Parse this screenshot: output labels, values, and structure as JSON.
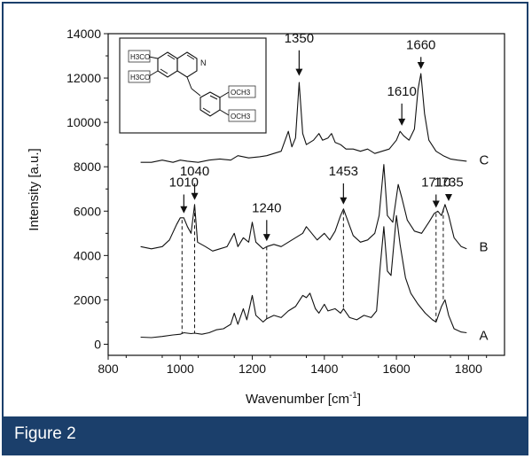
{
  "caption": {
    "text": "Figure 2"
  },
  "chart_data": {
    "type": "line",
    "title": "",
    "xlabel": "Wavenumber [cm",
    "xlabel_superscript": "-1",
    "xlabel_close": "]",
    "ylabel": "Intensity [a.u.]",
    "xlim": [
      800,
      1900
    ],
    "ylim": [
      -500,
      14000
    ],
    "xticks": [
      800,
      1000,
      1200,
      1400,
      1600,
      1800
    ],
    "yticks": [
      0,
      2000,
      4000,
      6000,
      8000,
      10000,
      12000,
      14000
    ],
    "grid": false,
    "series": [
      {
        "name": "A",
        "points": [
          [
            890,
            320
          ],
          [
            920,
            300
          ],
          [
            950,
            350
          ],
          [
            980,
            420
          ],
          [
            1000,
            450
          ],
          [
            1010,
            520
          ],
          [
            1030,
            480
          ],
          [
            1040,
            500
          ],
          [
            1060,
            450
          ],
          [
            1080,
            520
          ],
          [
            1100,
            650
          ],
          [
            1120,
            700
          ],
          [
            1140,
            900
          ],
          [
            1150,
            1400
          ],
          [
            1160,
            900
          ],
          [
            1175,
            1600
          ],
          [
            1185,
            1100
          ],
          [
            1200,
            2200
          ],
          [
            1210,
            1300
          ],
          [
            1230,
            1000
          ],
          [
            1240,
            1150
          ],
          [
            1260,
            1300
          ],
          [
            1280,
            1200
          ],
          [
            1300,
            1500
          ],
          [
            1320,
            1700
          ],
          [
            1340,
            2200
          ],
          [
            1350,
            2100
          ],
          [
            1360,
            2300
          ],
          [
            1375,
            1600
          ],
          [
            1385,
            1400
          ],
          [
            1400,
            1800
          ],
          [
            1410,
            1500
          ],
          [
            1430,
            1600
          ],
          [
            1445,
            1400
          ],
          [
            1453,
            1600
          ],
          [
            1470,
            1200
          ],
          [
            1490,
            1100
          ],
          [
            1510,
            1300
          ],
          [
            1530,
            1200
          ],
          [
            1545,
            1500
          ],
          [
            1555,
            3500
          ],
          [
            1565,
            5300
          ],
          [
            1575,
            3300
          ],
          [
            1585,
            3100
          ],
          [
            1600,
            5800
          ],
          [
            1610,
            4500
          ],
          [
            1625,
            3000
          ],
          [
            1640,
            2300
          ],
          [
            1660,
            1800
          ],
          [
            1680,
            1400
          ],
          [
            1700,
            1100
          ],
          [
            1710,
            1000
          ],
          [
            1725,
            1700
          ],
          [
            1735,
            2000
          ],
          [
            1745,
            1300
          ],
          [
            1760,
            700
          ],
          [
            1780,
            550
          ],
          [
            1795,
            520
          ]
        ]
      },
      {
        "name": "B",
        "points": [
          [
            890,
            4400
          ],
          [
            920,
            4300
          ],
          [
            950,
            4400
          ],
          [
            970,
            4700
          ],
          [
            990,
            5400
          ],
          [
            1000,
            5700
          ],
          [
            1010,
            5700
          ],
          [
            1020,
            5300
          ],
          [
            1030,
            5000
          ],
          [
            1040,
            6300
          ],
          [
            1048,
            4600
          ],
          [
            1070,
            4400
          ],
          [
            1090,
            4200
          ],
          [
            1110,
            4300
          ],
          [
            1130,
            4400
          ],
          [
            1150,
            5000
          ],
          [
            1160,
            4400
          ],
          [
            1175,
            4800
          ],
          [
            1190,
            4600
          ],
          [
            1200,
            5500
          ],
          [
            1210,
            4600
          ],
          [
            1230,
            4300
          ],
          [
            1240,
            4400
          ],
          [
            1260,
            4500
          ],
          [
            1280,
            4400
          ],
          [
            1300,
            4600
          ],
          [
            1320,
            4800
          ],
          [
            1340,
            5000
          ],
          [
            1350,
            5300
          ],
          [
            1365,
            5000
          ],
          [
            1380,
            4700
          ],
          [
            1400,
            5000
          ],
          [
            1415,
            4700
          ],
          [
            1430,
            5100
          ],
          [
            1445,
            5800
          ],
          [
            1453,
            6100
          ],
          [
            1462,
            5700
          ],
          [
            1480,
            4900
          ],
          [
            1500,
            4600
          ],
          [
            1520,
            4700
          ],
          [
            1540,
            5000
          ],
          [
            1552,
            5800
          ],
          [
            1565,
            8100
          ],
          [
            1575,
            5800
          ],
          [
            1590,
            5500
          ],
          [
            1605,
            7200
          ],
          [
            1615,
            6600
          ],
          [
            1630,
            5600
          ],
          [
            1650,
            5100
          ],
          [
            1670,
            5000
          ],
          [
            1690,
            5500
          ],
          [
            1705,
            5900
          ],
          [
            1715,
            6000
          ],
          [
            1725,
            5800
          ],
          [
            1735,
            6300
          ],
          [
            1745,
            5800
          ],
          [
            1760,
            4800
          ],
          [
            1780,
            4400
          ],
          [
            1795,
            4300
          ]
        ]
      },
      {
        "name": "C",
        "points": [
          [
            890,
            8200
          ],
          [
            920,
            8200
          ],
          [
            950,
            8300
          ],
          [
            980,
            8200
          ],
          [
            1000,
            8300
          ],
          [
            1020,
            8250
          ],
          [
            1050,
            8200
          ],
          [
            1080,
            8300
          ],
          [
            1110,
            8350
          ],
          [
            1140,
            8300
          ],
          [
            1160,
            8500
          ],
          [
            1190,
            8400
          ],
          [
            1220,
            8450
          ],
          [
            1240,
            8500
          ],
          [
            1260,
            8600
          ],
          [
            1280,
            8700
          ],
          [
            1300,
            9600
          ],
          [
            1310,
            8900
          ],
          [
            1320,
            9300
          ],
          [
            1330,
            11800
          ],
          [
            1340,
            9500
          ],
          [
            1350,
            9000
          ],
          [
            1370,
            9200
          ],
          [
            1385,
            9500
          ],
          [
            1395,
            9200
          ],
          [
            1410,
            9300
          ],
          [
            1420,
            9500
          ],
          [
            1430,
            9100
          ],
          [
            1445,
            9000
          ],
          [
            1460,
            8800
          ],
          [
            1480,
            8800
          ],
          [
            1500,
            8700
          ],
          [
            1520,
            8800
          ],
          [
            1540,
            8600
          ],
          [
            1560,
            8700
          ],
          [
            1580,
            8800
          ],
          [
            1600,
            9200
          ],
          [
            1610,
            9600
          ],
          [
            1620,
            9400
          ],
          [
            1635,
            9200
          ],
          [
            1650,
            9700
          ],
          [
            1660,
            11500
          ],
          [
            1668,
            12200
          ],
          [
            1678,
            10400
          ],
          [
            1690,
            9200
          ],
          [
            1710,
            8700
          ],
          [
            1730,
            8500
          ],
          [
            1750,
            8350
          ],
          [
            1770,
            8300
          ],
          [
            1795,
            8250
          ]
        ]
      }
    ],
    "series_label_positions": [
      {
        "name": "A",
        "x": 1830,
        "y": 400
      },
      {
        "name": "B",
        "x": 1830,
        "y": 4400
      },
      {
        "name": "C",
        "x": 1830,
        "y": 8300
      }
    ],
    "annotations": [
      {
        "label": "1010",
        "x": 1010,
        "text_y": 7100,
        "arrow_from": 6750,
        "arrow_to": 5900
      },
      {
        "label": "1040",
        "x": 1040,
        "text_y": 7600,
        "arrow_from": 7250,
        "arrow_to": 6500
      },
      {
        "label": "1240",
        "x": 1240,
        "text_y": 5950,
        "arrow_from": 5600,
        "arrow_to": 4650
      },
      {
        "label": "1453",
        "x": 1453,
        "text_y": 7600,
        "arrow_from": 7250,
        "arrow_to": 6300
      },
      {
        "label": "1710",
        "x": 1710,
        "text_y": 7100,
        "arrow_from": 6750,
        "arrow_to": 6150
      },
      {
        "label": "1735",
        "x": 1745,
        "text_y": 7100,
        "arrow_from": 6750,
        "arrow_to": 6450
      },
      {
        "label": "1350",
        "x": 1330,
        "text_y": 13600,
        "arrow_from": 13250,
        "arrow_to": 12100
      },
      {
        "label": "1610",
        "x": 1615,
        "text_y": 11200,
        "arrow_from": 10850,
        "arrow_to": 9850
      },
      {
        "label": "1660",
        "x": 1668,
        "text_y": 13300,
        "arrow_from": 12950,
        "arrow_to": 12400
      }
    ],
    "dashed_lines": [
      {
        "x": 1005,
        "y_top": 5600,
        "y_bottom": 500
      },
      {
        "x": 1040,
        "y_top": 6200,
        "y_bottom": 500
      },
      {
        "x": 1240,
        "y_top": 4400,
        "y_bottom": 1150
      },
      {
        "x": 1453,
        "y_top": 6000,
        "y_bottom": 1600
      },
      {
        "x": 1710,
        "y_top": 5900,
        "y_bottom": 1000
      },
      {
        "x": 1730,
        "y_top": 6100,
        "y_bottom": 2000
      }
    ],
    "inset": {
      "substituents": [
        "H3CO",
        "H3CO",
        "OCH3",
        "OCH3"
      ]
    }
  }
}
